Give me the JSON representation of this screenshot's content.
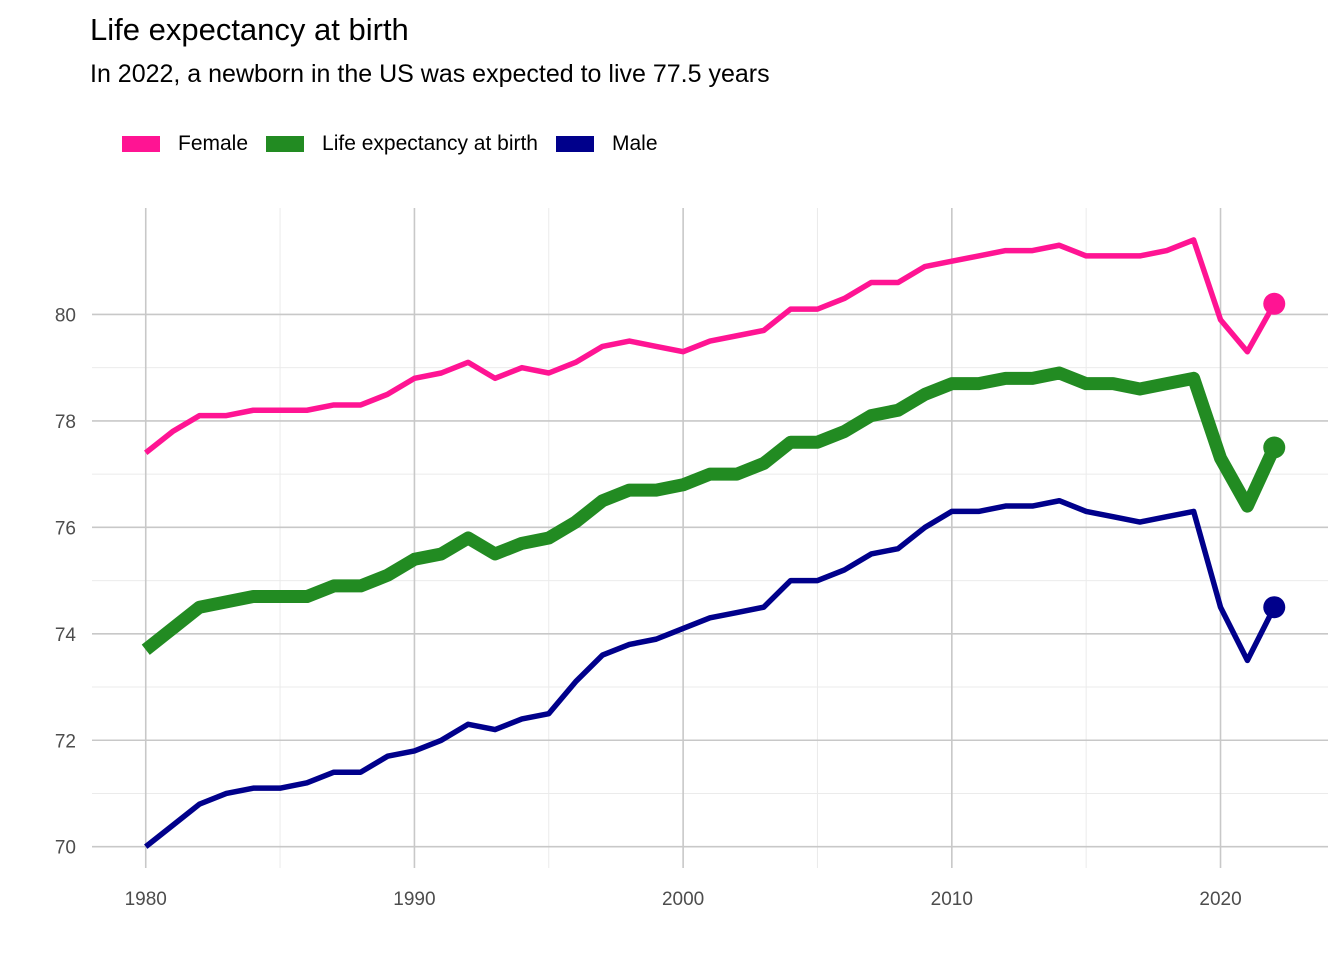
{
  "chart_data": {
    "type": "line",
    "title": "Life expectancy at birth",
    "subtitle": "In 2022, a newborn in the US was expected to live 77.5 years",
    "xlabel": "",
    "ylabel": "",
    "xlim": [
      1978,
      2024
    ],
    "ylim": [
      69.6,
      82
    ],
    "x_ticks": [
      1980,
      1990,
      2000,
      2010,
      2020
    ],
    "y_ticks": [
      70,
      72,
      74,
      76,
      78,
      80
    ],
    "grid": true,
    "legend_position": "top-left",
    "x": [
      1980,
      1981,
      1982,
      1983,
      1984,
      1985,
      1986,
      1987,
      1988,
      1989,
      1990,
      1991,
      1992,
      1993,
      1994,
      1995,
      1996,
      1997,
      1998,
      1999,
      2000,
      2001,
      2002,
      2003,
      2004,
      2005,
      2006,
      2007,
      2008,
      2009,
      2010,
      2011,
      2012,
      2013,
      2014,
      2015,
      2016,
      2017,
      2018,
      2019,
      2020,
      2021,
      2022
    ],
    "series": [
      {
        "name": "Female",
        "color": "#ff1493",
        "values": [
          77.4,
          77.8,
          78.1,
          78.1,
          78.2,
          78.2,
          78.2,
          78.3,
          78.3,
          78.5,
          78.8,
          78.9,
          79.1,
          78.8,
          79.0,
          78.9,
          79.1,
          79.4,
          79.5,
          79.4,
          79.3,
          79.5,
          79.6,
          79.7,
          80.1,
          80.1,
          80.3,
          80.6,
          80.6,
          80.9,
          81.0,
          81.1,
          81.2,
          81.2,
          81.3,
          81.1,
          81.1,
          81.1,
          81.2,
          81.4,
          79.9,
          79.3,
          80.2
        ]
      },
      {
        "name": "Life expectancy at birth",
        "color": "#228b22",
        "values": [
          73.7,
          74.1,
          74.5,
          74.6,
          74.7,
          74.7,
          74.7,
          74.9,
          74.9,
          75.1,
          75.4,
          75.5,
          75.8,
          75.5,
          75.7,
          75.8,
          76.1,
          76.5,
          76.7,
          76.7,
          76.8,
          77.0,
          77.0,
          77.2,
          77.6,
          77.6,
          77.8,
          78.1,
          78.2,
          78.5,
          78.7,
          78.7,
          78.8,
          78.8,
          78.9,
          78.7,
          78.7,
          78.6,
          78.7,
          78.8,
          77.3,
          76.4,
          77.5
        ]
      },
      {
        "name": "Male",
        "color": "#00008b",
        "values": [
          70.0,
          70.4,
          70.8,
          71.0,
          71.1,
          71.1,
          71.2,
          71.4,
          71.4,
          71.7,
          71.8,
          72.0,
          72.3,
          72.2,
          72.4,
          72.5,
          73.1,
          73.6,
          73.8,
          73.9,
          74.1,
          74.3,
          74.4,
          74.5,
          75.0,
          75.0,
          75.2,
          75.5,
          75.6,
          76.0,
          76.3,
          76.3,
          76.4,
          76.4,
          76.5,
          76.3,
          76.2,
          76.1,
          76.2,
          76.3,
          74.5,
          73.5,
          74.5
        ]
      }
    ]
  }
}
